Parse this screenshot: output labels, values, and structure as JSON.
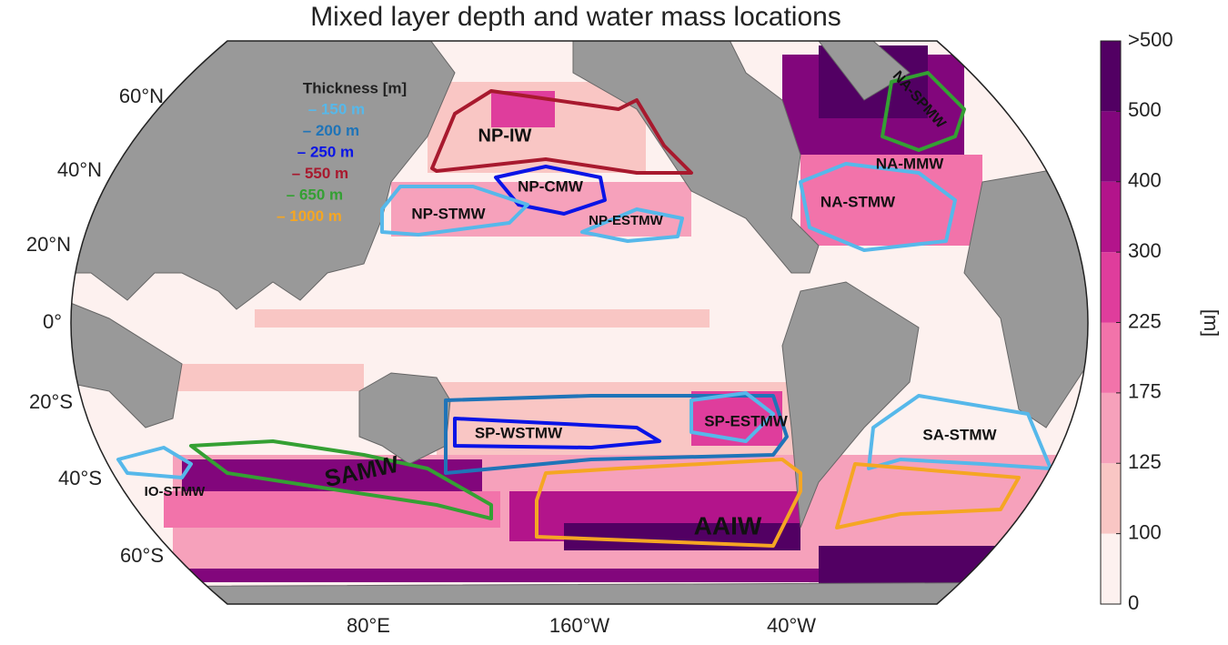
{
  "title": "Mixed layer depth and water mass locations",
  "lat_labels": [
    "60°N",
    "40°N",
    "20°N",
    "0°",
    "20°S",
    "40°S",
    "60°S"
  ],
  "lon_labels": [
    "80°E",
    "160°W",
    "40°W"
  ],
  "legend": {
    "title": "Thickness [m]",
    "entries": [
      {
        "label": "– 150 m",
        "color": "#56b8ea"
      },
      {
        "label": "– 200 m",
        "color": "#1f74b8"
      },
      {
        "label": "– 250 m",
        "color": "#0a14e6"
      },
      {
        "label": "– 550 m",
        "color": "#a8192e"
      },
      {
        "label": "– 650 m",
        "color": "#34a033"
      },
      {
        "label": "– 1000 m",
        "color": "#f5a623"
      }
    ]
  },
  "regions": [
    "NP-IW",
    "NP-CMW",
    "NP-STMW",
    "NP-ESTMW",
    "NA-MMW",
    "NA-STMW",
    "NA-SPMW",
    "SP-WSTMW",
    "SP-ESTMW",
    "SA-STMW",
    "IO-STMW",
    "SAMW",
    "AAIW"
  ],
  "colorbar": {
    "labels": [
      "0",
      "100",
      "125",
      "175",
      "225",
      "300",
      "400",
      "500",
      ">500"
    ],
    "colors": [
      "#fdf1ef",
      "#f9c6c4",
      "#f6a1bb",
      "#f273aa",
      "#df3d9c",
      "#b3148b",
      "#82067c",
      "#520063"
    ],
    "unit": "[m]"
  }
}
